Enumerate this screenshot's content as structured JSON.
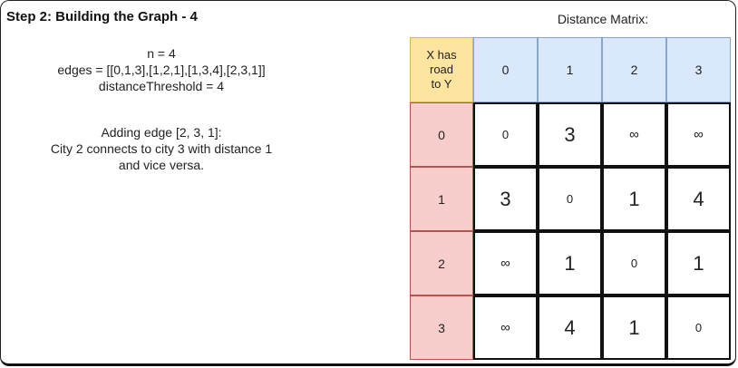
{
  "step_title": "Step 2: Building the Graph - 4",
  "params": [
    "n = 4",
    "edges = [[0,1,3],[1,2,1],[1,3,4],[2,3,1]]",
    "distanceThreshold = 4"
  ],
  "description": [
    "Adding edge [2, 3, 1]:",
    "City 2 connects to city 3 with distance 1",
    "and vice versa."
  ],
  "matrix": {
    "title": "Distance Matrix:",
    "corner_label": [
      "X has",
      "road",
      "to Y"
    ],
    "col_headers": [
      "0",
      "1",
      "2",
      "3"
    ],
    "row_headers": [
      "0",
      "1",
      "2",
      "3"
    ],
    "rows": [
      [
        "0",
        "3",
        "∞",
        "∞"
      ],
      [
        "3",
        "0",
        "1",
        "4"
      ],
      [
        "∞",
        "1",
        "0",
        "1"
      ],
      [
        "∞",
        "4",
        "1",
        "0"
      ]
    ]
  },
  "colors": {
    "corner_fill": "#fde5a0",
    "col_header_fill": "#dae8fc",
    "row_header_fill": "#f8cecc"
  }
}
